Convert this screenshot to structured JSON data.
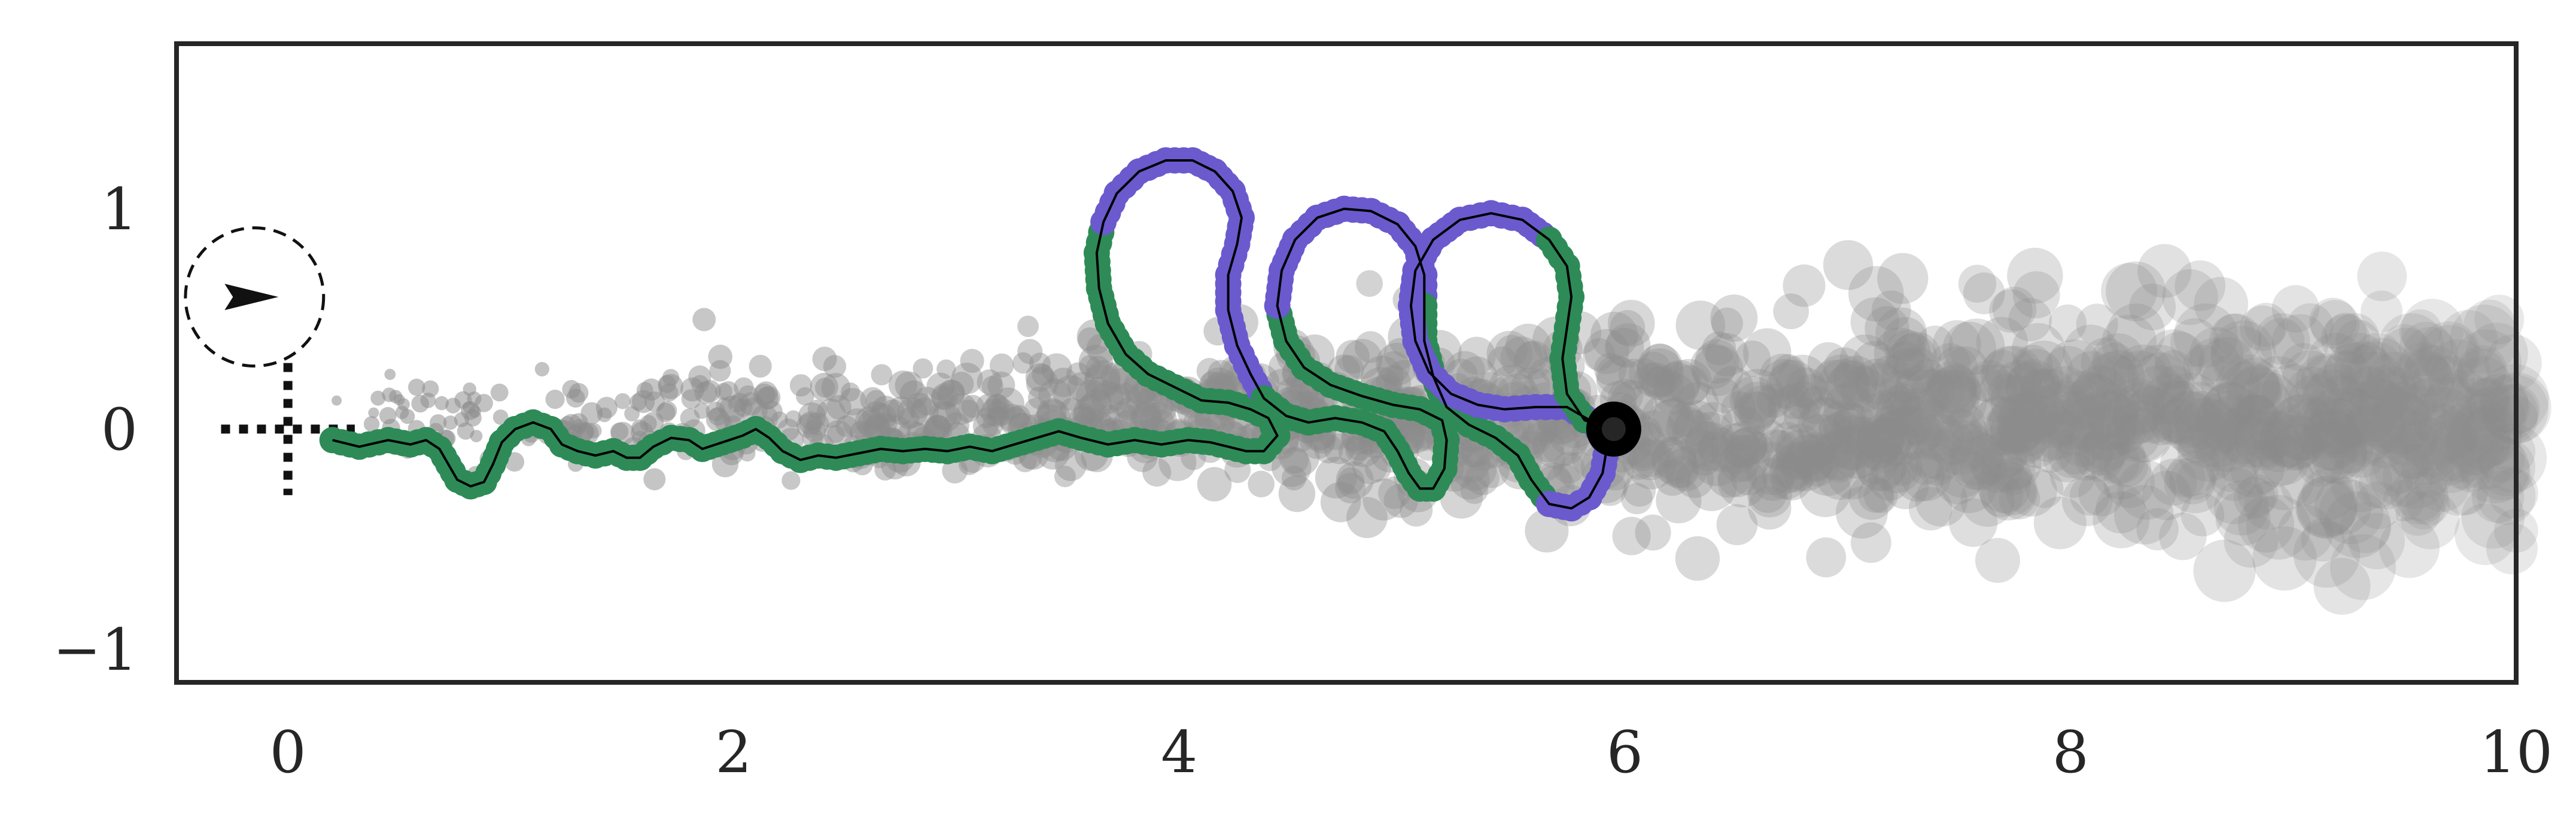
{
  "chart_data": {
    "type": "scatter",
    "title": "",
    "xlabel": "",
    "ylabel": "",
    "xlim": [
      -0.5,
      10
    ],
    "ylim": [
      -1.15,
      1.75
    ],
    "x_ticks": [
      {
        "value": 0,
        "label": "0"
      },
      {
        "value": 2,
        "label": "2"
      },
      {
        "value": 4,
        "label": "4"
      },
      {
        "value": 6,
        "label": "6"
      },
      {
        "value": 8,
        "label": "8"
      },
      {
        "value": 10,
        "label": "10"
      }
    ],
    "y_ticks": [
      {
        "value": 1,
        "label": "1"
      },
      {
        "value": 0,
        "label": "0"
      },
      {
        "value": -1,
        "label": "−1"
      }
    ],
    "grid": false,
    "legend": "none",
    "colors": {
      "frame": "#262626",
      "cloud": "#8c8c8c",
      "forward_segment": "#2e8b57",
      "backward_segment": "#6a5acd",
      "path_line": "#000000",
      "end_marker": "#000000"
    },
    "cloud": {
      "x_range": [
        0.2,
        10
      ],
      "y_center": 0.05,
      "spread_start": 0.08,
      "spread_end": 0.28,
      "marker_size_start": 0.03,
      "marker_size_end": 0.13,
      "count": 1400
    },
    "start_marker": {
      "x": -0.15,
      "y": 0.6,
      "radius": 0.31,
      "heading": "right",
      "axes_origin": {
        "x": 0,
        "y": 0
      }
    },
    "end_point": {
      "x": 5.95,
      "y": 0.0
    },
    "trajectory": [
      [
        0.2,
        -0.05
      ],
      [
        0.32,
        -0.08
      ],
      [
        0.45,
        -0.05
      ],
      [
        0.55,
        -0.07
      ],
      [
        0.62,
        -0.05
      ],
      [
        0.68,
        -0.09
      ],
      [
        0.72,
        -0.16
      ],
      [
        0.76,
        -0.23
      ],
      [
        0.82,
        -0.26
      ],
      [
        0.88,
        -0.24
      ],
      [
        0.92,
        -0.16
      ],
      [
        0.96,
        -0.06
      ],
      [
        1.02,
        0.0
      ],
      [
        1.1,
        0.03
      ],
      [
        1.18,
        0.0
      ],
      [
        1.23,
        -0.07
      ],
      [
        1.3,
        -0.1
      ],
      [
        1.38,
        -0.12
      ],
      [
        1.46,
        -0.1
      ],
      [
        1.52,
        -0.13
      ],
      [
        1.58,
        -0.13
      ],
      [
        1.64,
        -0.08
      ],
      [
        1.72,
        -0.04
      ],
      [
        1.8,
        -0.05
      ],
      [
        1.86,
        -0.09
      ],
      [
        1.92,
        -0.07
      ],
      [
        1.98,
        -0.05
      ],
      [
        2.04,
        -0.03
      ],
      [
        2.1,
        0.0
      ],
      [
        2.16,
        -0.04
      ],
      [
        2.22,
        -0.1
      ],
      [
        2.3,
        -0.14
      ],
      [
        2.38,
        -0.12
      ],
      [
        2.46,
        -0.13
      ],
      [
        2.56,
        -0.11
      ],
      [
        2.66,
        -0.09
      ],
      [
        2.76,
        -0.1
      ],
      [
        2.86,
        -0.09
      ],
      [
        2.96,
        -0.1
      ],
      [
        3.06,
        -0.08
      ],
      [
        3.16,
        -0.1
      ],
      [
        3.26,
        -0.07
      ],
      [
        3.36,
        -0.04
      ],
      [
        3.46,
        -0.01
      ],
      [
        3.56,
        -0.04
      ],
      [
        3.68,
        -0.07
      ],
      [
        3.8,
        -0.05
      ],
      [
        3.92,
        -0.07
      ],
      [
        4.04,
        -0.05
      ],
      [
        4.14,
        -0.06
      ],
      [
        4.22,
        -0.08
      ],
      [
        4.3,
        -0.1
      ],
      [
        4.38,
        -0.1
      ],
      [
        4.44,
        -0.03
      ],
      [
        4.4,
        0.05
      ],
      [
        4.32,
        0.09
      ],
      [
        4.22,
        0.12
      ],
      [
        4.1,
        0.13
      ],
      [
        3.98,
        0.19
      ],
      [
        3.86,
        0.25
      ],
      [
        3.76,
        0.34
      ],
      [
        3.68,
        0.48
      ],
      [
        3.64,
        0.64
      ],
      [
        3.63,
        0.8
      ],
      [
        3.66,
        0.94
      ],
      [
        3.72,
        1.07
      ],
      [
        3.82,
        1.17
      ],
      [
        3.94,
        1.22
      ],
      [
        4.06,
        1.22
      ],
      [
        4.16,
        1.17
      ],
      [
        4.24,
        1.08
      ],
      [
        4.28,
        0.96
      ],
      [
        4.26,
        0.84
      ],
      [
        4.22,
        0.7
      ],
      [
        4.22,
        0.54
      ],
      [
        4.26,
        0.38
      ],
      [
        4.32,
        0.25
      ],
      [
        4.38,
        0.14
      ],
      [
        4.48,
        0.06
      ],
      [
        4.58,
        0.03
      ],
      [
        4.7,
        0.05
      ],
      [
        4.82,
        0.03
      ],
      [
        4.92,
        -0.01
      ],
      [
        4.98,
        -0.1
      ],
      [
        5.03,
        -0.2
      ],
      [
        5.08,
        -0.27
      ],
      [
        5.14,
        -0.27
      ],
      [
        5.19,
        -0.18
      ],
      [
        5.2,
        -0.05
      ],
      [
        5.18,
        0.04
      ],
      [
        5.08,
        0.09
      ],
      [
        4.96,
        0.11
      ],
      [
        4.82,
        0.15
      ],
      [
        4.68,
        0.2
      ],
      [
        4.56,
        0.28
      ],
      [
        4.48,
        0.4
      ],
      [
        4.44,
        0.56
      ],
      [
        4.46,
        0.72
      ],
      [
        4.52,
        0.86
      ],
      [
        4.62,
        0.96
      ],
      [
        4.74,
        1.0
      ],
      [
        4.86,
        0.99
      ],
      [
        4.98,
        0.93
      ],
      [
        5.06,
        0.83
      ],
      [
        5.1,
        0.7
      ],
      [
        5.1,
        0.56
      ],
      [
        5.1,
        0.4
      ],
      [
        5.14,
        0.24
      ],
      [
        5.2,
        0.1
      ],
      [
        5.3,
        0.02
      ],
      [
        5.42,
        -0.04
      ],
      [
        5.52,
        -0.12
      ],
      [
        5.58,
        -0.23
      ],
      [
        5.66,
        -0.34
      ],
      [
        5.76,
        -0.36
      ],
      [
        5.84,
        -0.31
      ],
      [
        5.9,
        -0.2
      ],
      [
        5.92,
        -0.08
      ],
      [
        5.86,
        0.03
      ],
      [
        5.74,
        0.1
      ],
      [
        5.6,
        0.1
      ],
      [
        5.46,
        0.09
      ],
      [
        5.34,
        0.11
      ],
      [
        5.22,
        0.16
      ],
      [
        5.12,
        0.26
      ],
      [
        5.06,
        0.4
      ],
      [
        5.04,
        0.56
      ],
      [
        5.06,
        0.72
      ],
      [
        5.14,
        0.86
      ],
      [
        5.26,
        0.95
      ],
      [
        5.4,
        0.98
      ],
      [
        5.54,
        0.95
      ],
      [
        5.66,
        0.86
      ],
      [
        5.74,
        0.74
      ],
      [
        5.76,
        0.6
      ],
      [
        5.74,
        0.46
      ],
      [
        5.72,
        0.32
      ],
      [
        5.74,
        0.16
      ],
      [
        5.82,
        0.04
      ],
      [
        5.95,
        0.0
      ]
    ],
    "backward_runs": [
      [
        64,
        76
      ],
      [
        96,
        104
      ],
      [
        113,
        131
      ]
    ]
  }
}
